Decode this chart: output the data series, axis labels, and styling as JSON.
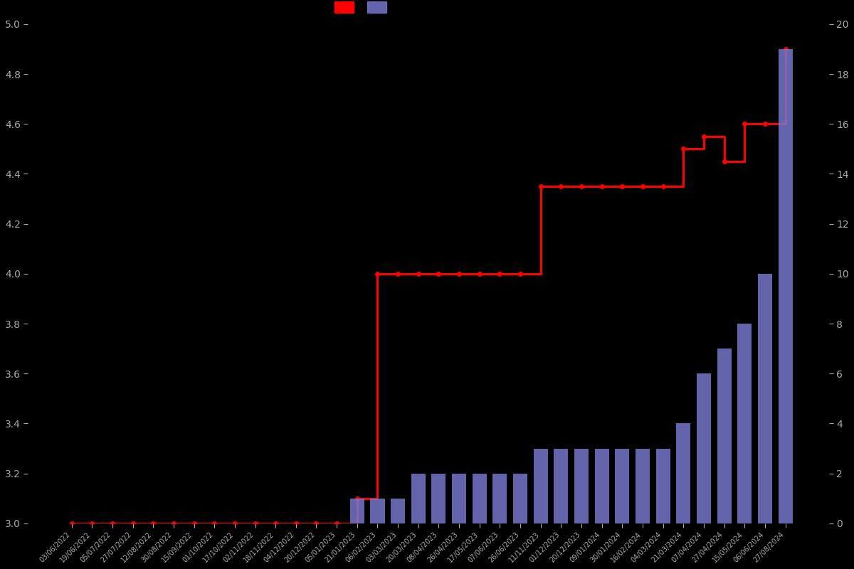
{
  "dates": [
    "03/06/2022",
    "19/06/2022",
    "05/07/2022",
    "27/07/2022",
    "12/08/2022",
    "30/08/2022",
    "15/09/2022",
    "01/10/2022",
    "17/10/2022",
    "02/11/2022",
    "18/11/2022",
    "04/12/2022",
    "20/12/2022",
    "05/01/2023",
    "21/01/2023",
    "06/02/2023",
    "03/03/2023",
    "20/03/2023",
    "08/04/2023",
    "26/04/2023",
    "17/05/2023",
    "07/06/2023",
    "26/06/2023",
    "11/11/2023",
    "01/12/2023",
    "20/12/2023",
    "09/01/2024",
    "30/01/2024",
    "16/02/2024",
    "04/03/2024",
    "21/03/2024",
    "07/04/2024",
    "27/04/2024",
    "15/05/2024",
    "06/06/2024",
    "27/08/2024"
  ],
  "bar_vals": [
    0,
    0,
    0,
    0,
    0,
    0,
    0,
    0,
    0,
    0,
    0,
    0,
    0,
    0,
    1,
    1,
    1,
    2,
    2,
    2,
    2,
    2,
    2,
    3,
    3,
    3,
    3,
    3,
    3,
    3,
    4,
    6,
    7,
    8,
    10,
    19
  ],
  "avg_vals": [
    3.0,
    3.0,
    3.0,
    3.0,
    3.0,
    3.0,
    3.0,
    3.0,
    3.0,
    3.0,
    3.0,
    3.0,
    3.0,
    3.0,
    3.1,
    4.0,
    4.0,
    4.0,
    4.0,
    4.0,
    4.0,
    4.0,
    4.0,
    4.35,
    4.35,
    4.35,
    4.35,
    4.35,
    4.35,
    4.35,
    4.5,
    4.55,
    4.45,
    4.6,
    4.6,
    4.9
  ],
  "bar_color": "#7777cc",
  "line_color": "#ff0000",
  "background_color": "#000000",
  "text_color": "#aaaaaa",
  "ylim_left": [
    3.0,
    5.0
  ],
  "ylim_right": [
    0,
    20
  ],
  "yticks_left": [
    3.0,
    3.2,
    3.4,
    3.6,
    3.8,
    4.0,
    4.2,
    4.4,
    4.6,
    4.8,
    5.0
  ],
  "yticks_right": [
    0,
    2,
    4,
    6,
    8,
    10,
    12,
    14,
    16,
    18,
    20
  ],
  "bar_width": 0.7,
  "line_width": 2.2,
  "marker_size": 4
}
